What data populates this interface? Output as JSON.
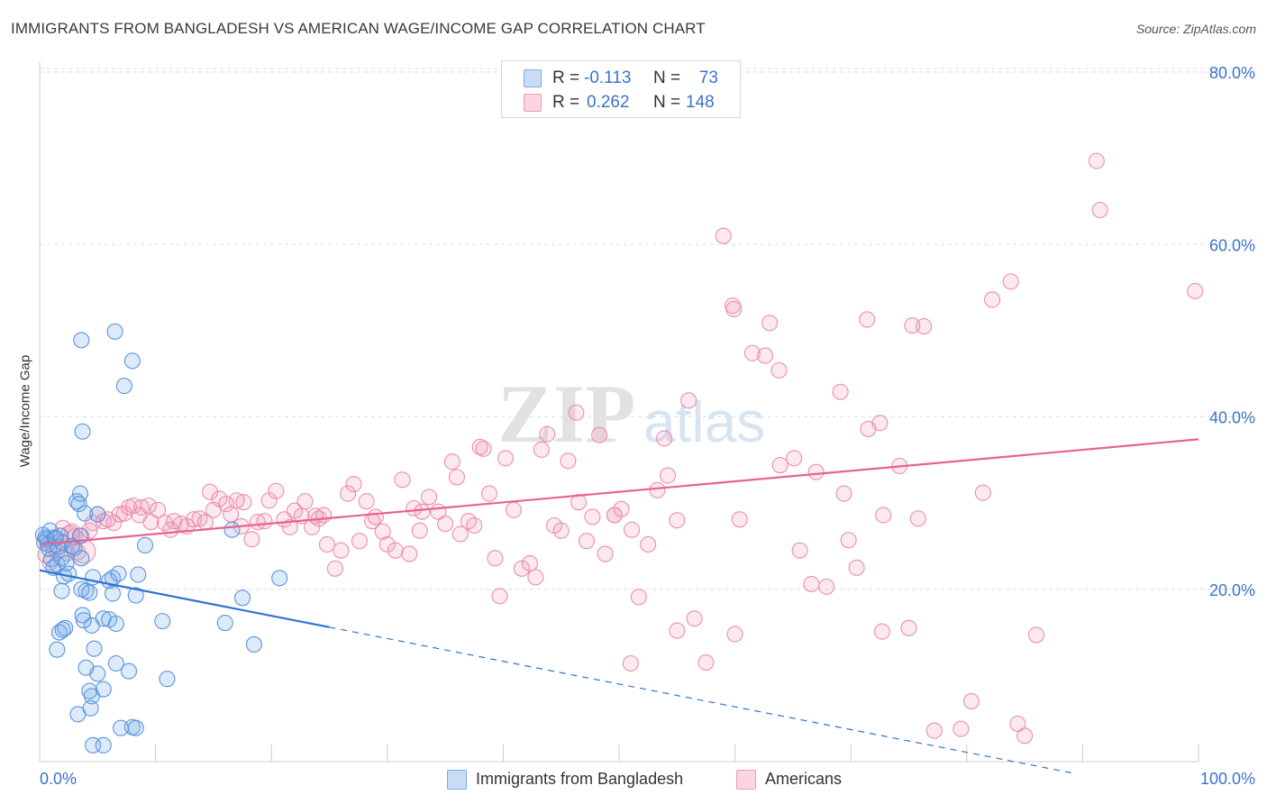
{
  "header": {
    "title": "IMMIGRANTS FROM BANGLADESH VS AMERICAN WAGE/INCOME GAP CORRELATION CHART",
    "source": "Source: ZipAtlas.com"
  },
  "stats": {
    "r_label": "R =",
    "n_label": "N =",
    "rows": [
      {
        "r": "-0.113",
        "n": "73",
        "color": "#aac8ef"
      },
      {
        "r": "0.262",
        "n": "148",
        "color": "#f5b9ca"
      }
    ]
  },
  "legend": {
    "items": [
      {
        "label": "Immigrants from Bangladesh",
        "color": "#aac8ef"
      },
      {
        "label": "Americans",
        "color": "#f5b9ca"
      }
    ]
  },
  "colors": {
    "blue_fill": "rgba(120,170,230,0.25)",
    "blue_stroke": "#5b95de",
    "blue_line": "#2f72d0",
    "pink_fill": "rgba(240,150,180,0.22)",
    "pink_stroke": "#eb8fae",
    "pink_line": "#e7638f",
    "axis_text": "#3a74c9",
    "grid": "#dedede"
  },
  "chart_data": {
    "type": "scatter",
    "title": "IMMIGRANTS FROM BANGLADESH VS AMERICAN WAGE/INCOME GAP CORRELATION CHART",
    "xlabel": "",
    "ylabel": "Wage/Income Gap",
    "xlim": [
      0,
      100
    ],
    "ylim": [
      0,
      80
    ],
    "x_tick_labels": [
      "0.0%",
      "100.0%"
    ],
    "y_ticks": [
      20,
      40,
      60,
      80
    ],
    "y_tick_labels": [
      "20.0%",
      "40.0%",
      "60.0%",
      "80.0%"
    ],
    "grid": true,
    "legend_position": "bottom-center",
    "series": [
      {
        "name": "Immigrants from Bangladesh",
        "r": -0.113,
        "n": 73,
        "trend": {
          "solid": [
            [
              0,
              22.2
            ],
            [
              25,
              15.6
            ]
          ],
          "dashed": [
            [
              25,
              15.6
            ],
            [
              100,
              -4.2
            ]
          ]
        },
        "points": [
          [
            0.3,
            26.3
          ],
          [
            0.4,
            25.4
          ],
          [
            0.5,
            26.0
          ],
          [
            0.6,
            25.8
          ],
          [
            0.7,
            25.2
          ],
          [
            0.8,
            24.7
          ],
          [
            0.9,
            26.8
          ],
          [
            1.0,
            23.5
          ],
          [
            1.2,
            22.5
          ],
          [
            1.3,
            26.0
          ],
          [
            1.4,
            25.9
          ],
          [
            1.5,
            22.9
          ],
          [
            1.6,
            24.9
          ],
          [
            1.8,
            26.2
          ],
          [
            1.9,
            23.6
          ],
          [
            2.0,
            25.4
          ],
          [
            2.1,
            21.5
          ],
          [
            2.3,
            23.0
          ],
          [
            2.5,
            21.8
          ],
          [
            2.8,
            25.0
          ],
          [
            3.0,
            24.8
          ],
          [
            3.5,
            26.2
          ],
          [
            3.6,
            23.6
          ],
          [
            1.7,
            15.0
          ],
          [
            2.2,
            15.5
          ],
          [
            1.9,
            19.8
          ],
          [
            3.2,
            30.2
          ],
          [
            3.4,
            29.9
          ],
          [
            3.9,
            28.8
          ],
          [
            5.0,
            28.7
          ],
          [
            3.5,
            31.1
          ],
          [
            2.0,
            15.3
          ],
          [
            1.5,
            13.0
          ],
          [
            4.0,
            19.8
          ],
          [
            4.6,
            21.4
          ],
          [
            3.7,
            38.3
          ],
          [
            3.7,
            17.0
          ],
          [
            3.6,
            20.0
          ],
          [
            4.5,
            15.8
          ],
          [
            3.8,
            16.4
          ],
          [
            4.3,
            19.6
          ],
          [
            5.5,
            16.6
          ],
          [
            4.7,
            13.1
          ],
          [
            5.0,
            10.2
          ],
          [
            5.5,
            8.4
          ],
          [
            4.5,
            7.6
          ],
          [
            4.4,
            6.2
          ],
          [
            4.3,
            8.2
          ],
          [
            4.0,
            10.9
          ],
          [
            3.3,
            5.5
          ],
          [
            4.6,
            1.9
          ],
          [
            5.5,
            1.9
          ],
          [
            6.3,
            21.3
          ],
          [
            6.0,
            21.0
          ],
          [
            6.8,
            21.8
          ],
          [
            6.0,
            16.5
          ],
          [
            6.6,
            16.0
          ],
          [
            6.6,
            11.4
          ],
          [
            7.7,
            10.5
          ],
          [
            8.0,
            4.0
          ],
          [
            8.3,
            3.9
          ],
          [
            7.0,
            3.9
          ],
          [
            6.3,
            19.5
          ],
          [
            8.3,
            19.3
          ],
          [
            8.5,
            21.7
          ],
          [
            9.1,
            25.1
          ],
          [
            10.6,
            16.3
          ],
          [
            11.0,
            9.6
          ],
          [
            16.0,
            16.1
          ],
          [
            16.6,
            26.9
          ],
          [
            17.5,
            19.0
          ],
          [
            18.5,
            13.6
          ],
          [
            20.7,
            21.3
          ],
          [
            7.3,
            43.6
          ],
          [
            8.0,
            46.5
          ],
          [
            6.5,
            49.9
          ],
          [
            3.6,
            48.9
          ]
        ]
      },
      {
        "name": "Americans",
        "r": 0.262,
        "n": 148,
        "trend": {
          "solid": [
            [
              0,
              25.2
            ],
            [
              100,
              37.4
            ]
          ]
        },
        "points": [
          [
            0.5,
            24.0
          ],
          [
            0.9,
            23.1
          ],
          [
            1.2,
            24.9
          ],
          [
            1.5,
            24.3
          ],
          [
            1.8,
            25.6
          ],
          [
            2.0,
            27.1
          ],
          [
            2.4,
            24.2
          ],
          [
            2.8,
            26.7
          ],
          [
            3.0,
            26.1
          ],
          [
            3.3,
            24.3
          ],
          [
            3.6,
            26.2
          ],
          [
            4.3,
            26.8
          ],
          [
            4.6,
            27.7
          ],
          [
            5.0,
            28.7
          ],
          [
            5.5,
            27.9
          ],
          [
            5.9,
            28.1
          ],
          [
            6.4,
            27.7
          ],
          [
            6.9,
            28.7
          ],
          [
            7.3,
            28.8
          ],
          [
            7.7,
            29.5
          ],
          [
            8.1,
            29.7
          ],
          [
            8.6,
            28.6
          ],
          [
            8.8,
            29.5
          ],
          [
            9.4,
            29.7
          ],
          [
            9.6,
            27.8
          ],
          [
            10.2,
            29.2
          ],
          [
            10.8,
            27.7
          ],
          [
            11.3,
            26.9
          ],
          [
            11.6,
            27.9
          ],
          [
            12.2,
            27.6
          ],
          [
            12.7,
            27.3
          ],
          [
            13.3,
            28.1
          ],
          [
            13.8,
            28.2
          ],
          [
            14.3,
            27.8
          ],
          [
            14.7,
            31.3
          ],
          [
            15.0,
            29.2
          ],
          [
            15.5,
            30.5
          ],
          [
            16.1,
            29.9
          ],
          [
            16.5,
            28.7
          ],
          [
            17.0,
            30.3
          ],
          [
            17.4,
            27.3
          ],
          [
            17.6,
            30.1
          ],
          [
            18.3,
            25.8
          ],
          [
            18.8,
            27.8
          ],
          [
            19.4,
            27.9
          ],
          [
            19.8,
            30.3
          ],
          [
            20.4,
            31.4
          ],
          [
            21.1,
            28.1
          ],
          [
            21.6,
            27.2
          ],
          [
            22.0,
            29.1
          ],
          [
            22.6,
            28.5
          ],
          [
            22.9,
            30.2
          ],
          [
            23.5,
            27.2
          ],
          [
            23.8,
            28.5
          ],
          [
            24.1,
            28.2
          ],
          [
            24.5,
            28.6
          ],
          [
            24.8,
            25.2
          ],
          [
            25.5,
            22.4
          ],
          [
            26.0,
            24.5
          ],
          [
            26.6,
            31.1
          ],
          [
            27.1,
            32.2
          ],
          [
            27.6,
            25.6
          ],
          [
            28.2,
            30.2
          ],
          [
            28.7,
            27.9
          ],
          [
            29.0,
            28.4
          ],
          [
            29.6,
            26.7
          ],
          [
            30.0,
            25.2
          ],
          [
            30.7,
            24.5
          ],
          [
            31.3,
            32.7
          ],
          [
            31.9,
            24.1
          ],
          [
            32.3,
            29.4
          ],
          [
            32.8,
            26.8
          ],
          [
            33.6,
            30.7
          ],
          [
            34.4,
            29.0
          ],
          [
            35.0,
            27.6
          ],
          [
            35.6,
            34.8
          ],
          [
            36.3,
            26.4
          ],
          [
            37.0,
            27.9
          ],
          [
            37.5,
            27.4
          ],
          [
            38.3,
            36.3
          ],
          [
            38.8,
            31.1
          ],
          [
            39.3,
            23.6
          ],
          [
            39.7,
            19.2
          ],
          [
            40.2,
            35.2
          ],
          [
            40.9,
            29.2
          ],
          [
            41.6,
            22.4
          ],
          [
            42.3,
            23.0
          ],
          [
            42.8,
            21.4
          ],
          [
            43.3,
            36.2
          ],
          [
            43.8,
            38.0
          ],
          [
            44.4,
            27.4
          ],
          [
            45.0,
            26.8
          ],
          [
            45.6,
            34.9
          ],
          [
            46.3,
            40.5
          ],
          [
            46.5,
            30.1
          ],
          [
            47.2,
            25.6
          ],
          [
            47.7,
            28.4
          ],
          [
            48.3,
            37.9
          ],
          [
            48.8,
            24.1
          ],
          [
            49.6,
            28.6
          ],
          [
            50.2,
            29.3
          ],
          [
            51.1,
            26.9
          ],
          [
            51.7,
            19.1
          ],
          [
            52.5,
            25.2
          ],
          [
            53.3,
            31.5
          ],
          [
            53.9,
            37.5
          ],
          [
            54.2,
            33.2
          ],
          [
            55.0,
            15.2
          ],
          [
            56.5,
            16.6
          ],
          [
            57.5,
            11.5
          ],
          [
            59.0,
            61.0
          ],
          [
            59.8,
            52.9
          ],
          [
            59.9,
            52.5
          ],
          [
            60.4,
            28.1
          ],
          [
            61.5,
            47.4
          ],
          [
            62.6,
            47.1
          ],
          [
            63.0,
            50.9
          ],
          [
            63.8,
            45.4
          ],
          [
            63.9,
            34.4
          ],
          [
            65.1,
            35.2
          ],
          [
            65.6,
            24.5
          ],
          [
            66.6,
            20.6
          ],
          [
            67.0,
            33.6
          ],
          [
            67.9,
            20.3
          ],
          [
            69.1,
            42.9
          ],
          [
            69.4,
            31.1
          ],
          [
            69.8,
            25.7
          ],
          [
            70.5,
            22.5
          ],
          [
            71.5,
            38.6
          ],
          [
            72.5,
            39.3
          ],
          [
            71.4,
            51.3
          ],
          [
            72.8,
            28.6
          ],
          [
            72.7,
            15.1
          ],
          [
            74.2,
            34.3
          ],
          [
            75.3,
            50.6
          ],
          [
            75.8,
            28.2
          ],
          [
            76.3,
            50.5
          ],
          [
            77.2,
            3.6
          ],
          [
            79.5,
            3.8
          ],
          [
            80.4,
            7.0
          ],
          [
            81.4,
            31.2
          ],
          [
            82.2,
            53.6
          ],
          [
            83.8,
            55.7
          ],
          [
            84.4,
            4.4
          ],
          [
            85.0,
            3.0
          ],
          [
            86.0,
            14.7
          ],
          [
            91.2,
            69.7
          ],
          [
            91.5,
            64.0
          ],
          [
            99.7,
            54.6
          ],
          [
            49.6,
            28.6
          ],
          [
            56.0,
            41.9
          ],
          [
            60.0,
            14.8
          ],
          [
            75.0,
            15.5
          ],
          [
            51.0,
            11.4
          ],
          [
            38.0,
            36.5
          ],
          [
            36.0,
            33.0
          ],
          [
            33.0,
            29.0
          ],
          [
            55.0,
            28.0
          ]
        ]
      }
    ]
  }
}
